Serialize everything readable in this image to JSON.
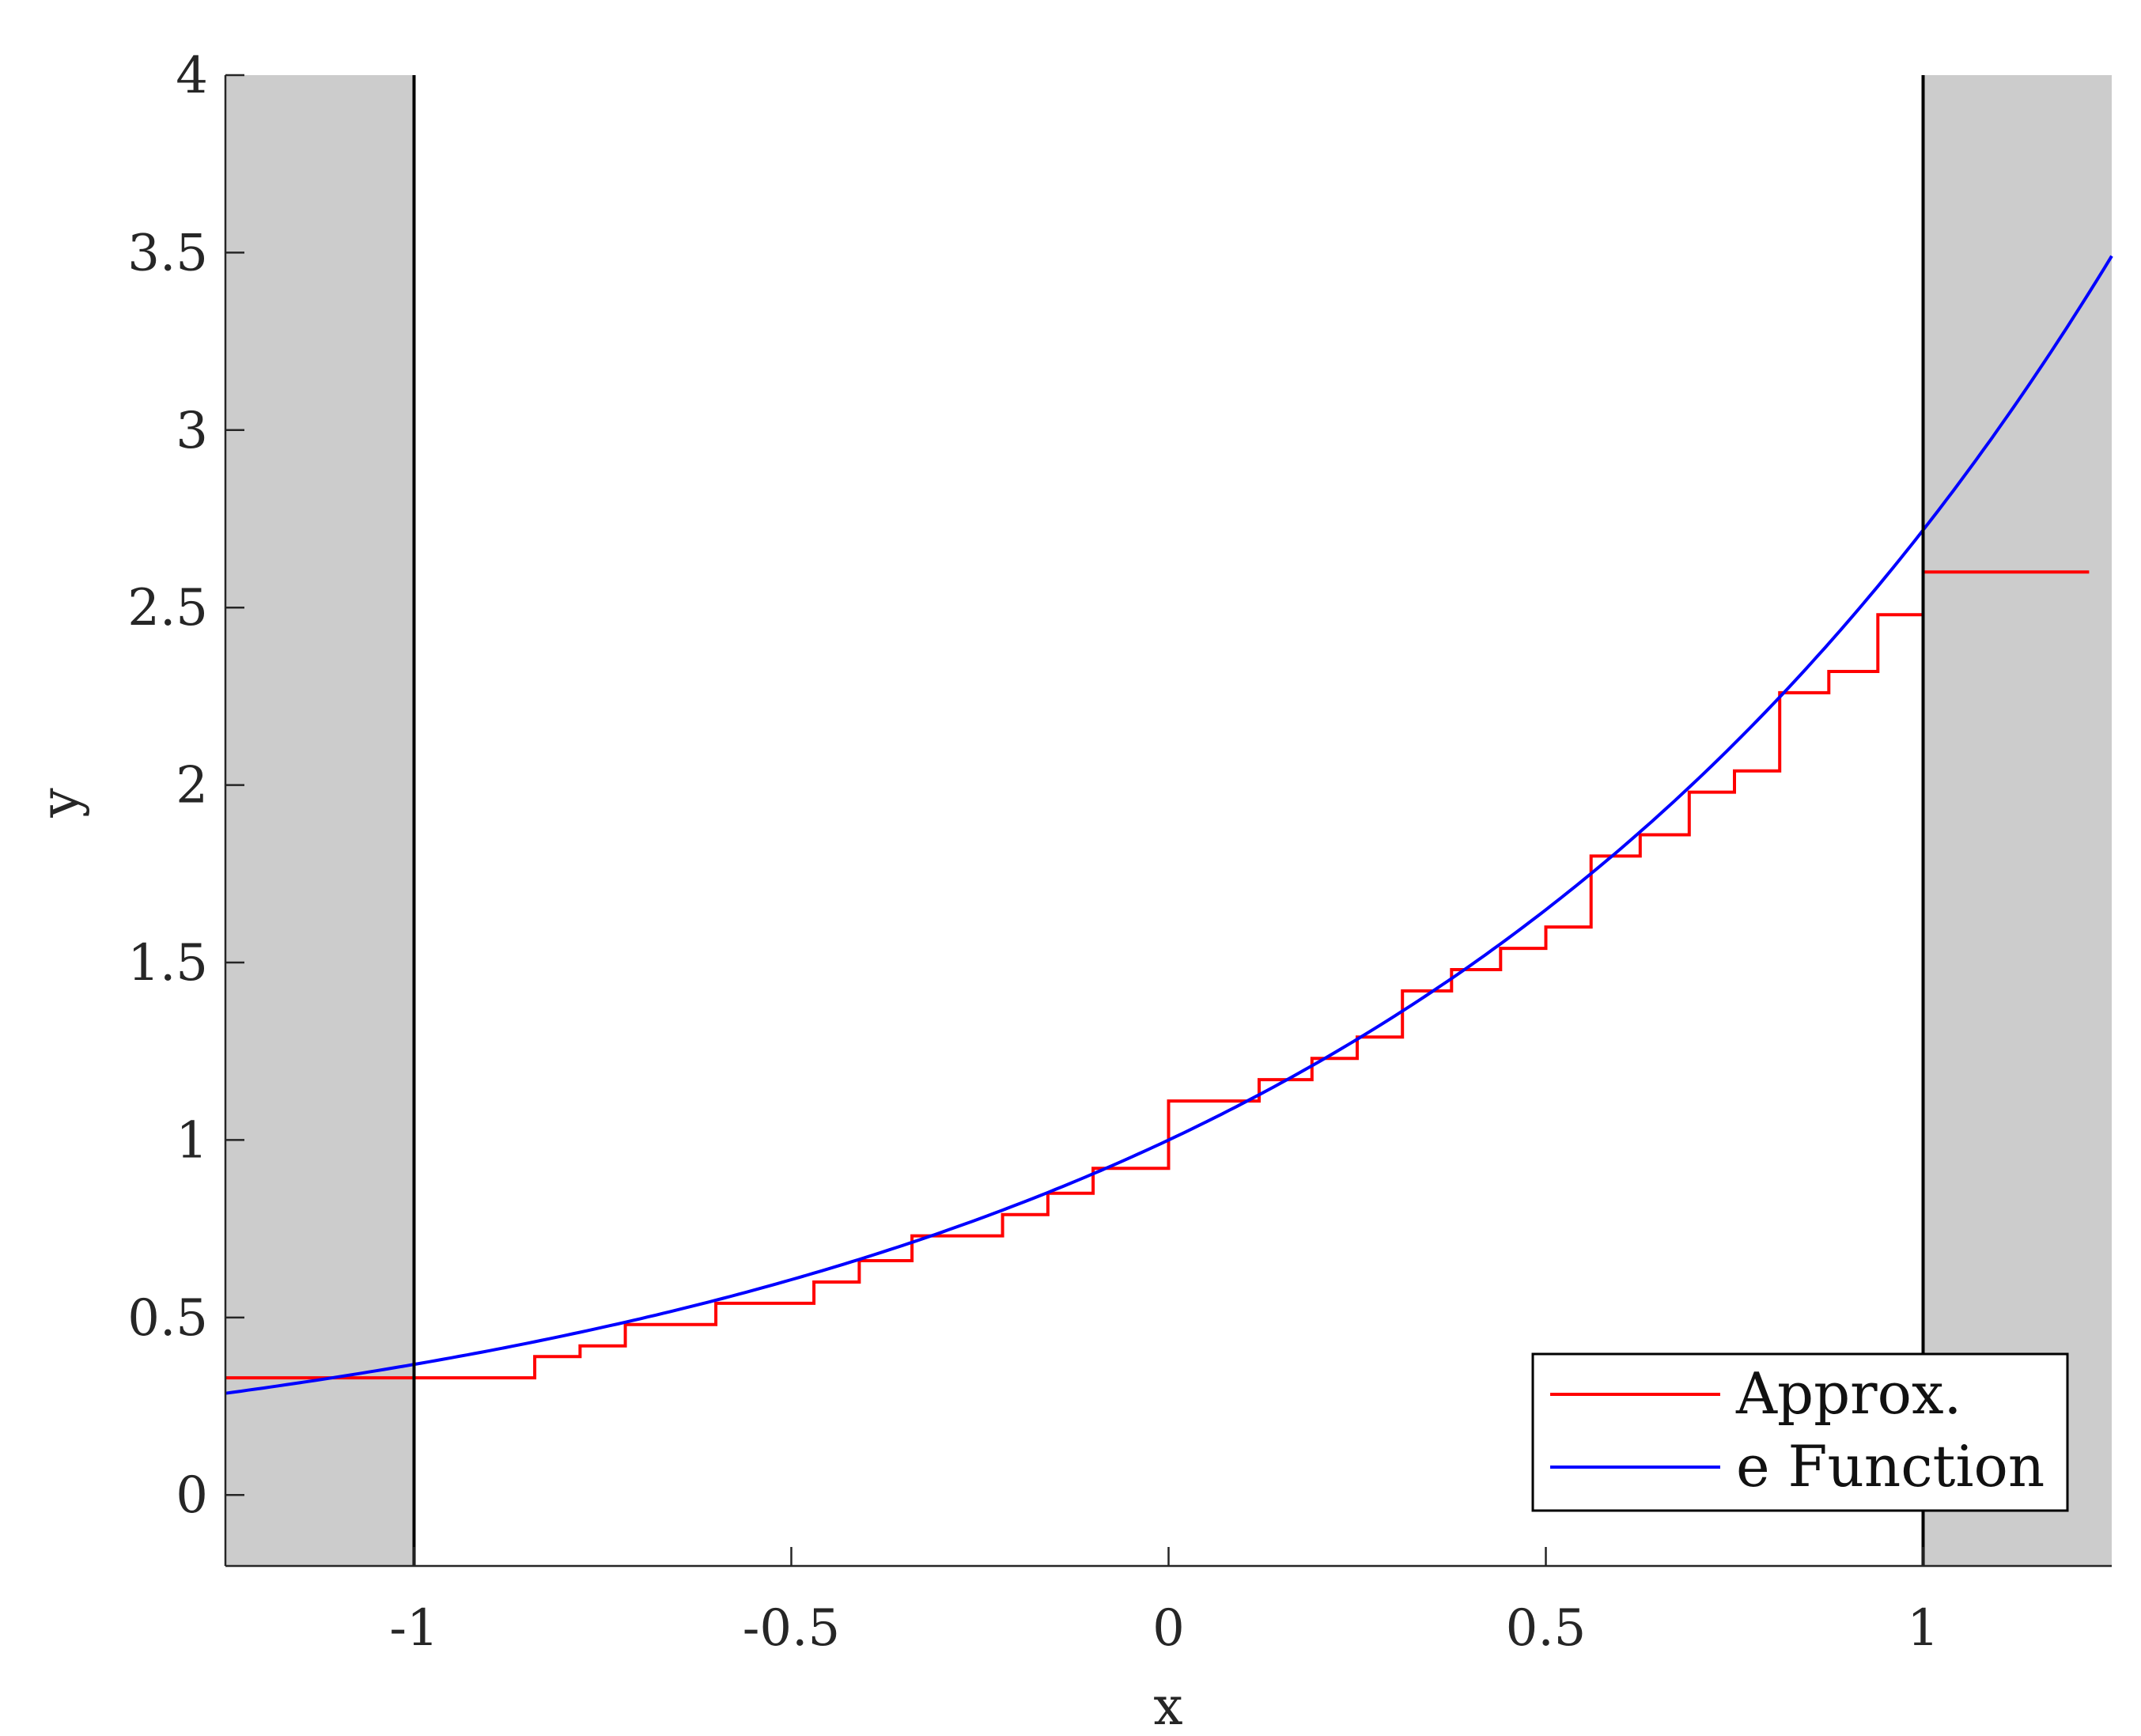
{
  "chart_data": {
    "type": "line",
    "title": "",
    "xlabel": "x",
    "ylabel": "y",
    "xlim": [
      -1.25,
      1.25
    ],
    "ylim": [
      -0.2,
      4
    ],
    "x_ticks": [
      -1,
      -0.5,
      0,
      0.5,
      1
    ],
    "x_tick_labels": [
      "-1",
      "-0.5",
      "0",
      "0.5",
      "1"
    ],
    "y_ticks": [
      0,
      0.5,
      1,
      1.5,
      2,
      2.5,
      3,
      3.5,
      4
    ],
    "y_tick_labels": [
      "0",
      "0.5",
      "1",
      "1.5",
      "2",
      "2.5",
      "3",
      "3.5",
      "4"
    ],
    "grid": false,
    "legend_position": "bottom-right",
    "shaded_regions": [
      {
        "x_start": -1.25,
        "x_end": -1,
        "color": "#cccccc"
      },
      {
        "x_start": 1,
        "x_end": 1.25,
        "color": "#cccccc"
      }
    ],
    "vertical_lines": [
      {
        "x": -1,
        "color": "#000000"
      },
      {
        "x": 1,
        "color": "#000000"
      }
    ],
    "series": [
      {
        "name": "Approx.",
        "kind": "step",
        "color": "#ff0000",
        "breaks": [
          -1.25,
          -0.84,
          -0.78,
          -0.72,
          -0.6,
          -0.47,
          -0.41,
          -0.34,
          -0.22,
          -0.16,
          -0.1,
          0,
          0.12,
          0.19,
          0.25,
          0.31,
          0.375,
          0.44,
          0.5,
          0.56,
          0.625,
          0.69,
          0.75,
          0.81,
          0.875,
          0.94,
          1,
          1.22
        ],
        "values": [
          0.33,
          0.39,
          0.42,
          0.48,
          0.54,
          0.6,
          0.66,
          0.73,
          0.79,
          0.85,
          0.92,
          1.11,
          1.17,
          1.23,
          1.29,
          1.42,
          1.48,
          1.54,
          1.6,
          1.8,
          1.86,
          1.98,
          2.04,
          2.26,
          2.32,
          2.48,
          2.6
        ]
      },
      {
        "name": "e Function",
        "kind": "function",
        "function": "exp(x)",
        "color": "#0000ff",
        "x_start": -1.25,
        "x_end": 1.25,
        "samples": 250
      }
    ]
  }
}
